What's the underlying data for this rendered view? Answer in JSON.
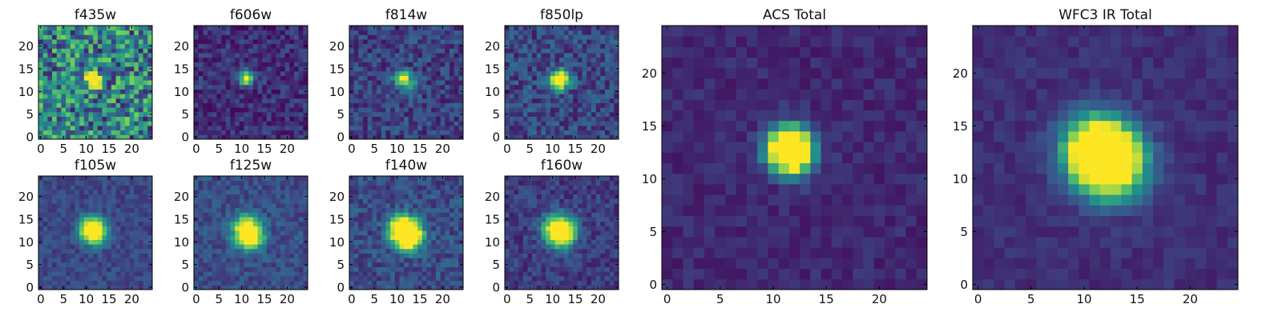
{
  "chart_data": {
    "type": "heatmap",
    "colormap": "viridis",
    "colormap_stops": [
      "#440154",
      "#3b528b",
      "#21908d",
      "#5dc963",
      "#fde725"
    ],
    "image_size": [
      25,
      25
    ],
    "panels": [
      {
        "title": "f435w",
        "xticks": [
          "0",
          "5",
          "10",
          "15",
          "20"
        ],
        "yticks": [
          "0",
          "5",
          "10",
          "15",
          "20"
        ],
        "xlim": [
          -0.5,
          24.5
        ],
        "ylim": [
          -0.5,
          24.5
        ],
        "source_peaks": [
          {
            "x": 11,
            "y": 13,
            "value": 1.0
          },
          {
            "x": 12,
            "y": 12,
            "value": 0.95
          }
        ],
        "background_level": 0.45,
        "noise_level": 0.35,
        "spread": 1.2
      },
      {
        "title": "f606w",
        "xticks": [
          "0",
          "5",
          "10",
          "15",
          "20"
        ],
        "yticks": [
          "0",
          "5",
          "10",
          "15",
          "20"
        ],
        "xlim": [
          -0.5,
          24.5
        ],
        "ylim": [
          -0.5,
          24.5
        ],
        "source_peaks": [
          {
            "x": 11,
            "y": 13,
            "value": 1.0
          }
        ],
        "background_level": 0.14,
        "noise_level": 0.12,
        "spread": 1.1
      },
      {
        "title": "f814w",
        "xticks": [
          "0",
          "5",
          "10",
          "15",
          "20"
        ],
        "yticks": [
          "0",
          "5",
          "10",
          "15",
          "20"
        ],
        "xlim": [
          -0.5,
          24.5
        ],
        "ylim": [
          -0.5,
          24.5
        ],
        "source_peaks": [
          {
            "x": 11,
            "y": 13,
            "value": 1.0
          },
          {
            "x": 13,
            "y": 11,
            "value": 0.5
          }
        ],
        "background_level": 0.2,
        "noise_level": 0.14,
        "spread": 1.2
      },
      {
        "title": "f850lp",
        "xticks": [
          "0",
          "5",
          "10",
          "15",
          "20"
        ],
        "yticks": [
          "0",
          "5",
          "10",
          "15",
          "20"
        ],
        "xlim": [
          -0.5,
          24.5
        ],
        "ylim": [
          -0.5,
          24.5
        ],
        "source_peaks": [
          {
            "x": 12,
            "y": 13,
            "value": 1.0
          },
          {
            "x": 11,
            "y": 12,
            "value": 0.6
          }
        ],
        "background_level": 0.22,
        "noise_level": 0.15,
        "spread": 1.4
      },
      {
        "title": "f105w",
        "xticks": [
          "0",
          "5",
          "10",
          "15",
          "20"
        ],
        "yticks": [
          "0",
          "5",
          "10",
          "15",
          "20"
        ],
        "xlim": [
          -0.5,
          24.5
        ],
        "ylim": [
          -0.5,
          24.5
        ],
        "source_peaks": [
          {
            "x": 11,
            "y": 13,
            "value": 1.0
          },
          {
            "x": 12,
            "y": 12,
            "value": 0.85
          }
        ],
        "background_level": 0.22,
        "noise_level": 0.08,
        "spread": 1.8
      },
      {
        "title": "f125w",
        "xticks": [
          "0",
          "5",
          "10",
          "15",
          "20"
        ],
        "yticks": [
          "0",
          "5",
          "10",
          "15",
          "20"
        ],
        "xlim": [
          -0.5,
          24.5
        ],
        "ylim": [
          -0.5,
          24.5
        ],
        "source_peaks": [
          {
            "x": 11,
            "y": 13,
            "value": 1.0
          },
          {
            "x": 12,
            "y": 11,
            "value": 0.95
          }
        ],
        "background_level": 0.24,
        "noise_level": 0.1,
        "spread": 2.0
      },
      {
        "title": "f140w",
        "xticks": [
          "0",
          "5",
          "10",
          "15",
          "20"
        ],
        "yticks": [
          "0",
          "5",
          "10",
          "15",
          "20"
        ],
        "xlim": [
          -0.5,
          24.5
        ],
        "ylim": [
          -0.5,
          24.5
        ],
        "source_peaks": [
          {
            "x": 11,
            "y": 13,
            "value": 1.0
          },
          {
            "x": 12,
            "y": 12,
            "value": 1.0
          },
          {
            "x": 13,
            "y": 11,
            "value": 0.95
          }
        ],
        "background_level": 0.24,
        "noise_level": 0.12,
        "spread": 2.0
      },
      {
        "title": "f160w",
        "xticks": [
          "0",
          "5",
          "10",
          "15",
          "20"
        ],
        "yticks": [
          "0",
          "5",
          "10",
          "15",
          "20"
        ],
        "xlim": [
          -0.5,
          24.5
        ],
        "ylim": [
          -0.5,
          24.5
        ],
        "source_peaks": [
          {
            "x": 12,
            "y": 12,
            "value": 1.0
          },
          {
            "x": 11,
            "y": 13,
            "value": 0.75
          }
        ],
        "background_level": 0.18,
        "noise_level": 0.1,
        "spread": 2.2
      },
      {
        "title": "ACS Total",
        "xticks": [
          "0",
          "5",
          "10",
          "15",
          "20"
        ],
        "yticks": [
          "0",
          "5",
          "10",
          "15",
          "20"
        ],
        "xlim": [
          -0.5,
          24.5
        ],
        "ylim": [
          -0.5,
          24.5
        ],
        "source_peaks": [
          {
            "x": 11,
            "y": 13,
            "value": 1.0
          },
          {
            "x": 12,
            "y": 13,
            "value": 0.8
          },
          {
            "x": 12,
            "y": 12,
            "value": 0.7
          }
        ],
        "background_level": 0.12,
        "noise_level": 0.06,
        "spread": 1.3
      },
      {
        "title": "WFC3 IR Total",
        "xticks": [
          "0",
          "5",
          "10",
          "15",
          "20"
        ],
        "yticks": [
          "0",
          "5",
          "10",
          "15",
          "20"
        ],
        "xlim": [
          -0.5,
          24.5
        ],
        "ylim": [
          -0.5,
          24.5
        ],
        "source_peaks": [
          {
            "x": 11,
            "y": 13,
            "value": 1.0
          },
          {
            "x": 12,
            "y": 12,
            "value": 1.0
          },
          {
            "x": 13,
            "y": 11,
            "value": 0.7
          }
        ],
        "background_level": 0.14,
        "noise_level": 0.05,
        "spread": 2.1
      }
    ]
  }
}
